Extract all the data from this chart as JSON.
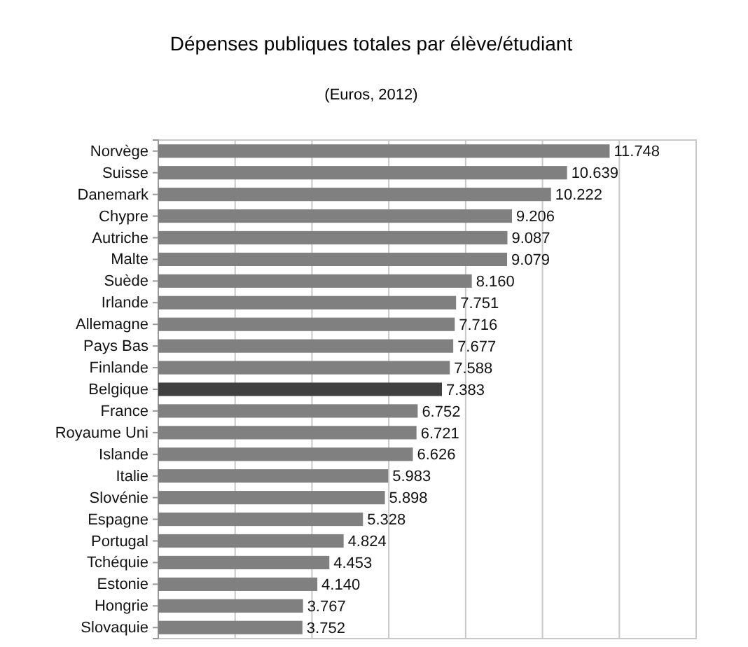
{
  "chart_data": {
    "type": "bar",
    "orientation": "horizontal",
    "title": "Dépenses publiques totales par élève/étudiant",
    "subtitle": "(Euros, 2012)",
    "categories": [
      "Norvège",
      "Suisse",
      "Danemark",
      "Chypre",
      "Autriche",
      "Malte",
      "Suède",
      "Irlande",
      "Allemagne",
      "Pays Bas",
      "Finlande",
      "Belgique",
      "France",
      "Royaume Uni",
      "Islande",
      "Italie",
      "Slovénie",
      "Espagne",
      "Portugal",
      "Tchéquie",
      "Estonie",
      "Hongrie",
      "Slovaquie"
    ],
    "values": [
      11748,
      10639,
      10222,
      9206,
      9087,
      9079,
      8160,
      7751,
      7716,
      7677,
      7588,
      7383,
      6752,
      6721,
      6626,
      5983,
      5898,
      5328,
      4824,
      4453,
      4140,
      3767,
      3752
    ],
    "value_labels": [
      "11.748",
      "10.639",
      "10.222",
      "9.206",
      "9.087",
      "9.079",
      "8.160",
      "7.751",
      "7.716",
      "7.677",
      "7.588",
      "7.383",
      "6.752",
      "6.721",
      "6.626",
      "5.983",
      "5.898",
      "5.328",
      "4.824",
      "4.453",
      "4.140",
      "3.767",
      "3.752"
    ],
    "colors": [
      "#808080",
      "#808080",
      "#808080",
      "#808080",
      "#808080",
      "#808080",
      "#808080",
      "#808080",
      "#808080",
      "#808080",
      "#808080",
      "#404040",
      "#808080",
      "#808080",
      "#808080",
      "#808080",
      "#808080",
      "#808080",
      "#808080",
      "#808080",
      "#808080",
      "#808080",
      "#808080"
    ],
    "xlim": [
      0,
      14000
    ],
    "xticks": [
      {
        "value": 0,
        "label": null
      },
      {
        "value": 2000,
        "label": null
      },
      {
        "value": 4000,
        "label": null
      },
      {
        "value": 6000,
        "label": null
      },
      {
        "value": 8000,
        "label": null
      },
      {
        "value": 10000,
        "label": null
      },
      {
        "value": 12000,
        "label": null
      },
      {
        "value": 14000,
        "label": null
      }
    ],
    "grid": "x",
    "tick_labels": "y"
  }
}
